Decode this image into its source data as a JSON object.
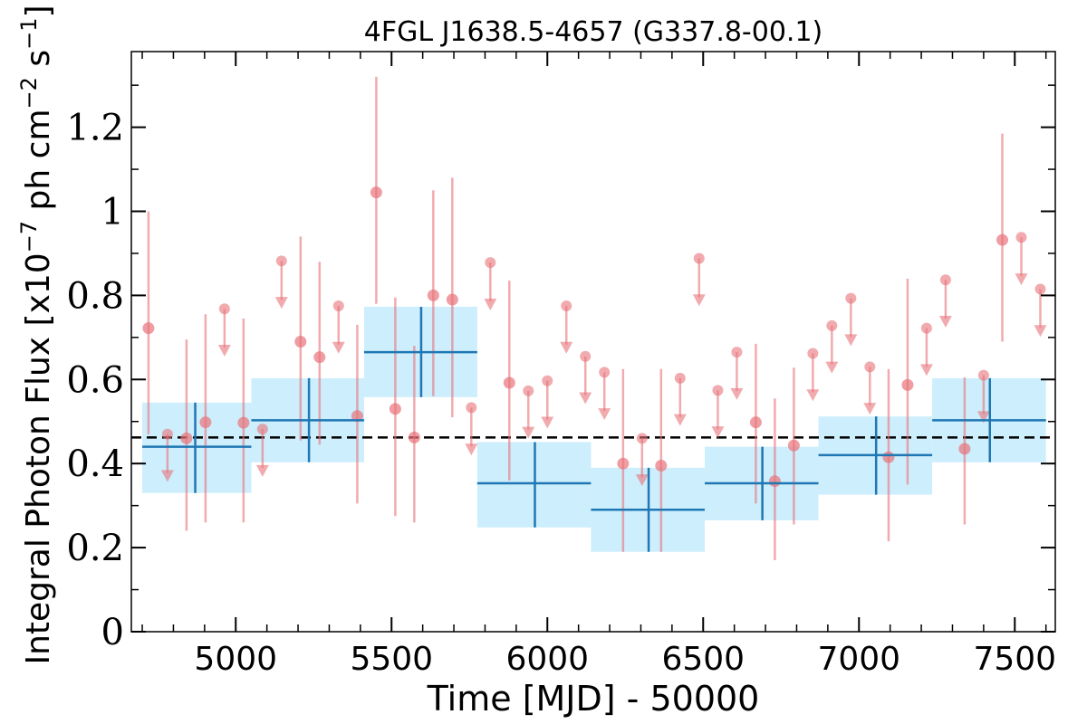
{
  "chart_data": {
    "type": "scatter",
    "title": "4FGL J1638.5-4657 (G337.8-00.1)",
    "xlabel": "Time [MJD] - 50000",
    "ylabel": "Integral Photon Flux [x10$^{-7}$ ph cm$^{-2}$ s$^{-1}$]",
    "xlim": [
      4665,
      7630
    ],
    "ylim": [
      0,
      1.38
    ],
    "xticks": [
      5000,
      5500,
      6000,
      6500,
      7000,
      7500
    ],
    "xtick_labels": [
      "5000",
      "5500",
      "6000",
      "6500",
      "7000",
      "7500"
    ],
    "yticks": [
      0,
      0.2,
      0.4,
      0.6,
      0.8,
      1.0,
      1.2
    ],
    "ytick_labels": [
      "0",
      "0.2",
      "0.4",
      "0.6",
      "0.8",
      "1",
      "1.2"
    ],
    "grid": false,
    "colors": {
      "monthly": "#e8737a",
      "yearly": "#1f77b4",
      "yearly_band": "#cdeefc",
      "mean_line": "#000000"
    },
    "mean_flux": 0.462,
    "yearly_bins": [
      {
        "x": 4870,
        "x_lo": 4700,
        "x_hi": 5050,
        "y": 0.44,
        "y_lo": 0.33,
        "y_hi": 0.545
      },
      {
        "x": 5235,
        "x_lo": 5050,
        "x_hi": 5412,
        "y": 0.503,
        "y_lo": 0.403,
        "y_hi": 0.603
      },
      {
        "x": 5595,
        "x_lo": 5412,
        "x_hi": 5775,
        "y": 0.665,
        "y_lo": 0.558,
        "y_hi": 0.773
      },
      {
        "x": 5960,
        "x_lo": 5775,
        "x_hi": 6140,
        "y": 0.353,
        "y_lo": 0.248,
        "y_hi": 0.451
      },
      {
        "x": 6325,
        "x_lo": 6140,
        "x_hi": 6505,
        "y": 0.29,
        "y_lo": 0.19,
        "y_hi": 0.39
      },
      {
        "x": 6690,
        "x_lo": 6505,
        "x_hi": 6870,
        "y": 0.353,
        "y_lo": 0.265,
        "y_hi": 0.44
      },
      {
        "x": 7055,
        "x_lo": 6870,
        "x_hi": 7235,
        "y": 0.42,
        "y_lo": 0.326,
        "y_hi": 0.512
      },
      {
        "x": 7420,
        "x_lo": 7235,
        "x_hi": 7600,
        "y": 0.503,
        "y_lo": 0.403,
        "y_hi": 0.603
      }
    ],
    "monthly_points": [
      {
        "x": 4720,
        "y": 0.722,
        "y_lo": 0.47,
        "y_hi": 1.0
      },
      {
        "x": 4842,
        "y": 0.46,
        "y_lo": 0.24,
        "y_hi": 0.695
      },
      {
        "x": 4903,
        "y": 0.498,
        "y_lo": 0.26,
        "y_hi": 0.755
      },
      {
        "x": 5025,
        "y": 0.497,
        "y_lo": 0.26,
        "y_hi": 0.745
      },
      {
        "x": 5208,
        "y": 0.69,
        "y_lo": 0.455,
        "y_hi": 0.94
      },
      {
        "x": 5269,
        "y": 0.653,
        "y_lo": 0.445,
        "y_hi": 0.88
      },
      {
        "x": 5390,
        "y": 0.513,
        "y_lo": 0.305,
        "y_hi": 0.73
      },
      {
        "x": 5451,
        "y": 1.045,
        "y_lo": 0.78,
        "y_hi": 1.32
      },
      {
        "x": 5512,
        "y": 0.53,
        "y_lo": 0.275,
        "y_hi": 0.795
      },
      {
        "x": 5573,
        "y": 0.462,
        "y_lo": 0.26,
        "y_hi": 0.68
      },
      {
        "x": 5634,
        "y": 0.8,
        "y_lo": 0.56,
        "y_hi": 1.05
      },
      {
        "x": 5695,
        "y": 0.79,
        "y_lo": 0.51,
        "y_hi": 1.08
      },
      {
        "x": 5878,
        "y": 0.592,
        "y_lo": 0.36,
        "y_hi": 0.835
      },
      {
        "x": 6243,
        "y": 0.4,
        "y_lo": 0.19,
        "y_hi": 0.625
      },
      {
        "x": 6365,
        "y": 0.395,
        "y_lo": 0.19,
        "y_hi": 0.625
      },
      {
        "x": 6669,
        "y": 0.498,
        "y_lo": 0.305,
        "y_hi": 0.685
      },
      {
        "x": 6730,
        "y": 0.358,
        "y_lo": 0.17,
        "y_hi": 0.555
      },
      {
        "x": 6791,
        "y": 0.443,
        "y_lo": 0.255,
        "y_hi": 0.628
      },
      {
        "x": 7095,
        "y": 0.415,
        "y_lo": 0.215,
        "y_hi": 0.625
      },
      {
        "x": 7156,
        "y": 0.587,
        "y_lo": 0.35,
        "y_hi": 0.84
      },
      {
        "x": 7339,
        "y": 0.435,
        "y_lo": 0.255,
        "y_hi": 0.605
      },
      {
        "x": 7460,
        "y": 0.932,
        "y_lo": 0.69,
        "y_hi": 1.185
      }
    ],
    "monthly_upper_limits": [
      {
        "x": 4781,
        "y": 0.47
      },
      {
        "x": 5086,
        "y": 0.482
      },
      {
        "x": 5147,
        "y": 0.882
      },
      {
        "x": 5330,
        "y": 0.775
      },
      {
        "x": 4964,
        "y": 0.768
      },
      {
        "x": 5756,
        "y": 0.533
      },
      {
        "x": 5817,
        "y": 0.878
      },
      {
        "x": 5939,
        "y": 0.573
      },
      {
        "x": 6000,
        "y": 0.597
      },
      {
        "x": 6061,
        "y": 0.775
      },
      {
        "x": 6122,
        "y": 0.655
      },
      {
        "x": 6183,
        "y": 0.617
      },
      {
        "x": 6304,
        "y": 0.46
      },
      {
        "x": 6426,
        "y": 0.603
      },
      {
        "x": 6487,
        "y": 0.888
      },
      {
        "x": 6547,
        "y": 0.574
      },
      {
        "x": 6608,
        "y": 0.665
      },
      {
        "x": 6852,
        "y": 0.662
      },
      {
        "x": 6913,
        "y": 0.728
      },
      {
        "x": 6974,
        "y": 0.793
      },
      {
        "x": 7035,
        "y": 0.63
      },
      {
        "x": 7217,
        "y": 0.722
      },
      {
        "x": 7278,
        "y": 0.837
      },
      {
        "x": 7400,
        "y": 0.61
      },
      {
        "x": 7521,
        "y": 0.938
      },
      {
        "x": 7582,
        "y": 0.815
      }
    ]
  }
}
